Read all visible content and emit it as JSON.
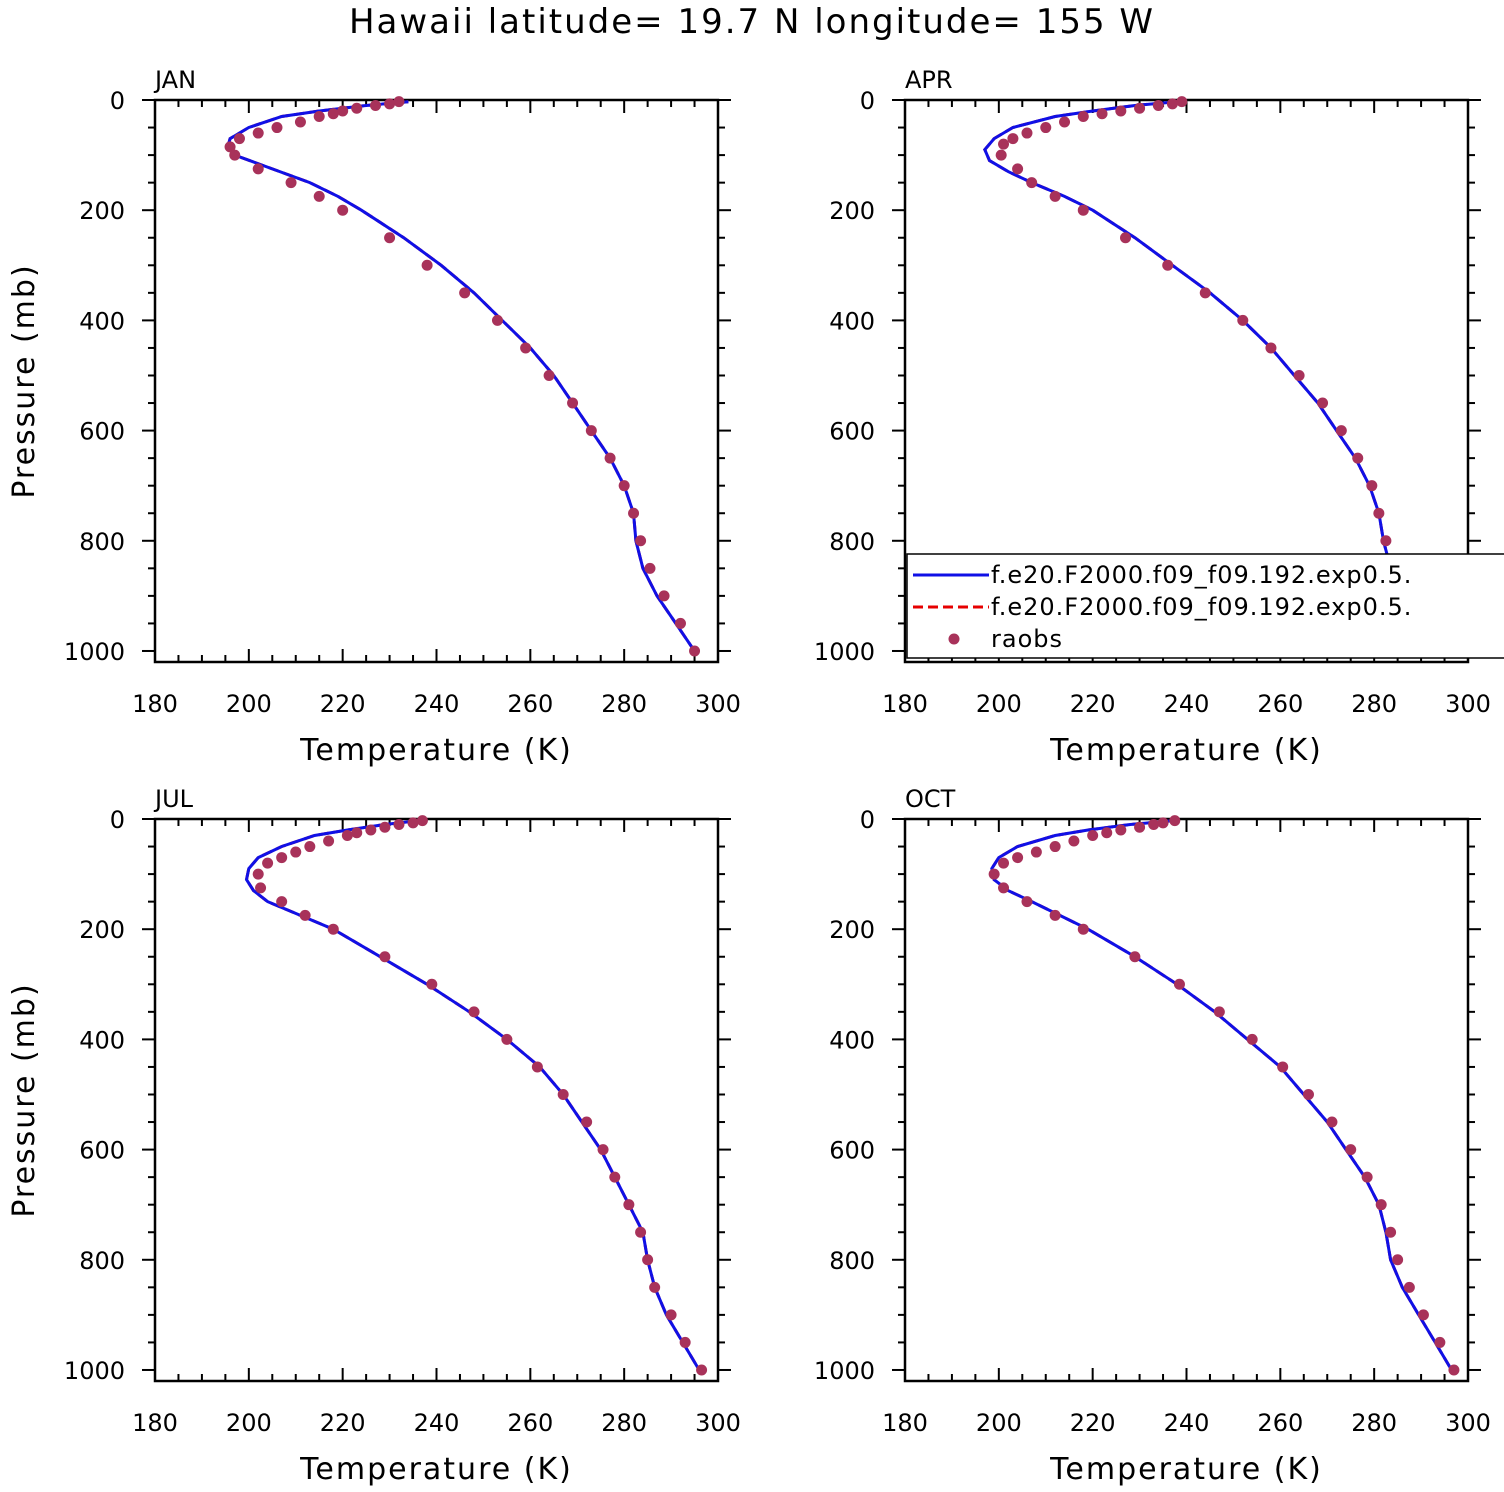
{
  "title": "Hawaii  latitude= 19.7 N longitude= 155 W",
  "colors": {
    "model1": "#1010e6",
    "model2": "#e60000",
    "raobs": "#a8325a",
    "axis": "#000000"
  },
  "legend": {
    "panel": 1,
    "entries": [
      {
        "label": "f.e20.F2000.f09_f09.192.exp0.5.",
        "style": "solid",
        "color": "#1010e6"
      },
      {
        "label": "f.e20.F2000.f09_f09.192.exp0.5.",
        "style": "dashed",
        "color": "#e60000"
      },
      {
        "label": "raobs",
        "style": "dot",
        "color": "#a8325a"
      }
    ]
  },
  "chart_data": [
    {
      "type": "line",
      "panel_label": "JAN",
      "xlabel": "Temperature (K)",
      "ylabel": "Pressure (mb)",
      "xlim": [
        180,
        300
      ],
      "ylim": [
        1020,
        0
      ],
      "xticks": [
        "180",
        "200",
        "220",
        "240",
        "260",
        "280",
        "300"
      ],
      "yticks": [
        "0",
        "200",
        "400",
        "600",
        "800",
        "1000"
      ],
      "model": {
        "p": [
          3,
          10,
          20,
          30,
          50,
          70,
          85,
          100,
          125,
          150,
          175,
          200,
          250,
          300,
          350,
          400,
          450,
          500,
          550,
          600,
          650,
          700,
          750,
          800,
          850,
          900,
          950,
          1000
        ],
        "t": [
          234,
          225,
          215,
          207,
          200,
          196,
          195.5,
          197,
          205,
          213,
          219,
          224,
          233,
          241,
          248,
          254,
          260,
          265,
          269,
          273,
          277,
          280,
          282,
          282.5,
          284,
          287,
          291,
          295
        ]
      },
      "raobs": {
        "p": [
          3,
          7,
          10,
          15,
          20,
          25,
          30,
          40,
          50,
          60,
          70,
          85,
          100,
          125,
          150,
          175,
          200,
          250,
          300,
          350,
          400,
          450,
          500,
          550,
          600,
          650,
          700,
          750,
          800,
          850,
          900,
          950,
          1000
        ],
        "t": [
          232,
          230,
          227,
          223,
          220,
          218,
          215,
          211,
          206,
          202,
          198,
          196,
          197,
          202,
          209,
          215,
          220,
          230,
          238,
          246,
          253,
          259,
          264,
          269,
          273,
          277,
          280,
          282,
          283.5,
          285.5,
          288.5,
          292,
          295
        ]
      }
    },
    {
      "type": "line",
      "panel_label": "APR",
      "xlabel": "Temperature (K)",
      "ylabel": "",
      "xlim": [
        180,
        300
      ],
      "ylim": [
        1020,
        0
      ],
      "xticks": [
        "180",
        "200",
        "220",
        "240",
        "260",
        "280",
        "300"
      ],
      "yticks": [
        "0",
        "200",
        "400",
        "600",
        "800",
        "1000"
      ],
      "model": {
        "p": [
          3,
          10,
          20,
          30,
          50,
          70,
          90,
          110,
          130,
          150,
          175,
          200,
          250,
          300,
          350,
          400,
          450,
          500,
          550,
          600,
          650,
          700,
          750,
          800,
          850,
          900,
          950,
          1000
        ],
        "t": [
          238,
          229,
          220,
          212,
          203,
          199,
          197,
          198,
          202,
          207,
          214,
          220,
          229,
          237,
          245,
          252,
          258,
          263,
          268,
          272,
          276,
          279,
          281,
          282,
          283.5,
          287,
          291,
          294.5
        ]
      },
      "raobs": {
        "p": [
          3,
          7,
          10,
          15,
          20,
          25,
          30,
          40,
          50,
          60,
          70,
          80,
          100,
          125,
          150,
          175,
          200,
          250,
          300,
          350,
          400,
          450,
          500,
          550,
          600,
          650,
          700,
          750,
          800,
          850,
          900,
          950,
          1000
        ],
        "t": [
          239,
          237,
          234,
          230,
          226,
          222,
          218,
          214,
          210,
          206,
          203,
          201,
          200.5,
          204,
          207,
          212,
          218,
          227,
          236,
          244,
          252,
          258,
          264,
          269,
          273,
          276.5,
          279.5,
          281,
          282.5,
          285,
          288,
          291,
          294.5
        ]
      }
    },
    {
      "type": "line",
      "panel_label": "JUL",
      "xlabel": "Temperature (K)",
      "ylabel": "Pressure (mb)",
      "xlim": [
        180,
        300
      ],
      "ylim": [
        1020,
        0
      ],
      "xticks": [
        "180",
        "200",
        "220",
        "240",
        "260",
        "280",
        "300"
      ],
      "yticks": [
        "0",
        "200",
        "400",
        "600",
        "800",
        "1000"
      ],
      "model": {
        "p": [
          3,
          10,
          20,
          30,
          50,
          70,
          90,
          110,
          130,
          150,
          175,
          200,
          250,
          300,
          350,
          400,
          450,
          500,
          550,
          600,
          650,
          700,
          750,
          800,
          850,
          900,
          950,
          1000
        ],
        "t": [
          236,
          229,
          221,
          214,
          207,
          202,
          200,
          199.5,
          201,
          204,
          211,
          218,
          228,
          238,
          247,
          255,
          262,
          267,
          271,
          275,
          278,
          281,
          284,
          285,
          286.5,
          289,
          292.5,
          296
        ]
      },
      "raobs": {
        "p": [
          3,
          7,
          10,
          15,
          20,
          25,
          30,
          40,
          50,
          60,
          70,
          80,
          100,
          125,
          150,
          175,
          200,
          250,
          300,
          350,
          400,
          450,
          500,
          550,
          600,
          650,
          700,
          750,
          800,
          850,
          900,
          950,
          1000
        ],
        "t": [
          237,
          235,
          232,
          229,
          226,
          223,
          221,
          217,
          213,
          210,
          207,
          204,
          202,
          202.5,
          207,
          212,
          218,
          229,
          239,
          248,
          255,
          261.5,
          267,
          272,
          275.5,
          278,
          281,
          283.5,
          285,
          286.5,
          290,
          293,
          296.5
        ]
      }
    },
    {
      "type": "line",
      "panel_label": "OCT",
      "xlabel": "Temperature (K)",
      "ylabel": "",
      "xlim": [
        180,
        300
      ],
      "ylim": [
        1020,
        0
      ],
      "xticks": [
        "180",
        "200",
        "220",
        "240",
        "260",
        "280",
        "300"
      ],
      "yticks": [
        "0",
        "200",
        "400",
        "600",
        "800",
        "1000"
      ],
      "model": {
        "p": [
          3,
          10,
          20,
          30,
          50,
          70,
          90,
          110,
          130,
          150,
          175,
          200,
          250,
          300,
          350,
          400,
          450,
          500,
          550,
          600,
          650,
          700,
          750,
          800,
          850,
          900,
          950,
          1000
        ],
        "t": [
          237,
          228,
          219,
          212,
          204,
          200,
          198.5,
          199,
          202,
          207,
          213,
          219,
          229,
          238,
          246,
          253,
          260,
          265,
          270,
          274,
          278,
          281,
          282.5,
          283.5,
          286,
          289.5,
          293,
          296.5
        ]
      },
      "raobs": {
        "p": [
          3,
          7,
          10,
          15,
          20,
          25,
          30,
          40,
          50,
          60,
          70,
          80,
          100,
          125,
          150,
          175,
          200,
          250,
          300,
          350,
          400,
          450,
          500,
          550,
          600,
          650,
          700,
          750,
          800,
          850,
          900,
          950,
          1000
        ],
        "t": [
          237.5,
          235,
          233,
          230,
          226,
          223,
          220,
          216,
          212,
          208,
          204,
          201,
          199,
          201,
          206,
          212,
          218,
          229,
          238.5,
          247,
          254,
          260.5,
          266,
          271,
          275,
          278.5,
          281.5,
          283.5,
          285,
          287.5,
          290.5,
          294,
          297
        ]
      }
    }
  ]
}
